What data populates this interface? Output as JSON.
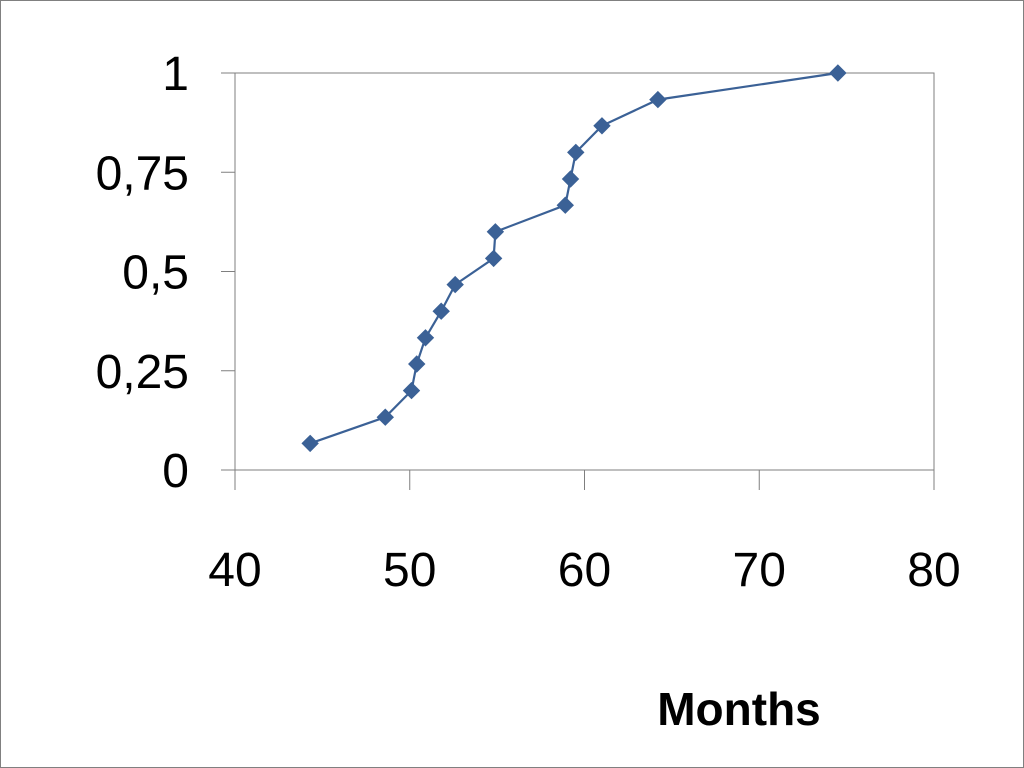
{
  "chart_data": {
    "type": "scatter",
    "title": "",
    "xlabel": "Months",
    "ylabel": "",
    "xlim": [
      40,
      80
    ],
    "ylim": [
      0,
      1
    ],
    "x_ticks": [
      40,
      50,
      60,
      70,
      80
    ],
    "y_ticks": [
      0,
      0.25,
      0.5,
      0.75,
      1
    ],
    "x_tick_labels": [
      "40",
      "50",
      "60",
      "70",
      "80"
    ],
    "y_tick_labels": [
      "0",
      "0,25",
      "0,5",
      "0,75",
      "1"
    ],
    "grid": false,
    "legend": "none",
    "series": [
      {
        "color": "#3B6196",
        "marker": "diamond",
        "connected": true,
        "points": [
          {
            "x": 44.3,
            "y": 0.067
          },
          {
            "x": 48.6,
            "y": 0.133
          },
          {
            "x": 50.1,
            "y": 0.2
          },
          {
            "x": 50.4,
            "y": 0.267
          },
          {
            "x": 50.9,
            "y": 0.333
          },
          {
            "x": 51.8,
            "y": 0.4
          },
          {
            "x": 52.6,
            "y": 0.467
          },
          {
            "x": 54.8,
            "y": 0.533
          },
          {
            "x": 54.9,
            "y": 0.6
          },
          {
            "x": 58.9,
            "y": 0.667
          },
          {
            "x": 59.2,
            "y": 0.733
          },
          {
            "x": 59.5,
            "y": 0.8
          },
          {
            "x": 61.0,
            "y": 0.867
          },
          {
            "x": 64.2,
            "y": 0.933
          },
          {
            "x": 74.5,
            "y": 1.0
          }
        ]
      }
    ]
  }
}
